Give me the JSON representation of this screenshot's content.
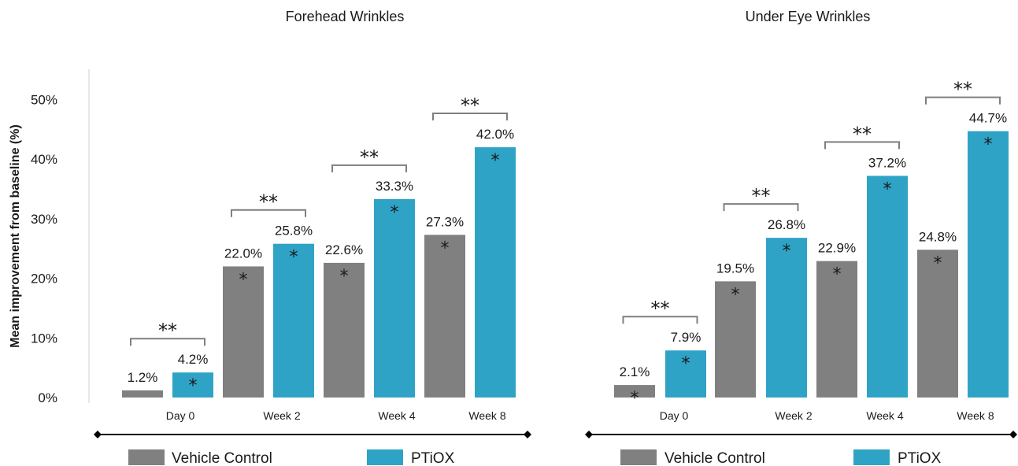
{
  "chart_data": [
    {
      "type": "bar",
      "title": "Forehead Wrinkles",
      "ylabel": "Mean improvement from baseline (%)",
      "ylim": [
        0,
        50
      ],
      "yticks": [
        "0%",
        "10%",
        "20%",
        "30%",
        "40%",
        "50%"
      ],
      "categories": [
        "Day 0",
        "Week 2",
        "Week 4",
        "Week 8"
      ],
      "series": [
        {
          "name": "Vehicle Control",
          "color": "#808080",
          "values": [
            1.2,
            22.0,
            22.6,
            27.3
          ],
          "labels": [
            "1.2%",
            "22.0%",
            "22.6%",
            "27.3%"
          ],
          "stars": [
            "",
            "*",
            "*",
            "*"
          ]
        },
        {
          "name": "PTiOX",
          "color": "#2fa3c6",
          "values": [
            4.2,
            25.8,
            33.3,
            42.0
          ],
          "labels": [
            "4.2%",
            "25.8%",
            "33.3%",
            "42.0%"
          ],
          "stars": [
            "*",
            "*",
            "*",
            "*"
          ]
        }
      ],
      "significance": [
        "**",
        "**",
        "**",
        "**"
      ]
    },
    {
      "type": "bar",
      "title": "Under Eye Wrinkles",
      "ylabel": "",
      "ylim": [
        0,
        50
      ],
      "categories": [
        "Day 0",
        "Week 2",
        "Week 4",
        "Week 8"
      ],
      "series": [
        {
          "name": "Vehicle Control",
          "color": "#808080",
          "values": [
            2.1,
            19.5,
            22.9,
            24.8
          ],
          "labels": [
            "2.1%",
            "19.5%",
            "22.9%",
            "24.8%"
          ],
          "stars": [
            "*",
            "*",
            "*",
            "*"
          ]
        },
        {
          "name": "PTiOX",
          "color": "#2fa3c6",
          "values": [
            7.9,
            26.8,
            37.2,
            44.7
          ],
          "labels": [
            "7.9%",
            "26.8%",
            "37.2%",
            "44.7%"
          ],
          "stars": [
            "*",
            "*",
            "*",
            "*"
          ]
        }
      ],
      "significance": [
        "**",
        "**",
        "**",
        "**"
      ]
    }
  ],
  "legend": [
    {
      "name": "Vehicle Control",
      "color": "#808080"
    },
    {
      "name": "PTiOX",
      "color": "#2fa3c6"
    }
  ]
}
